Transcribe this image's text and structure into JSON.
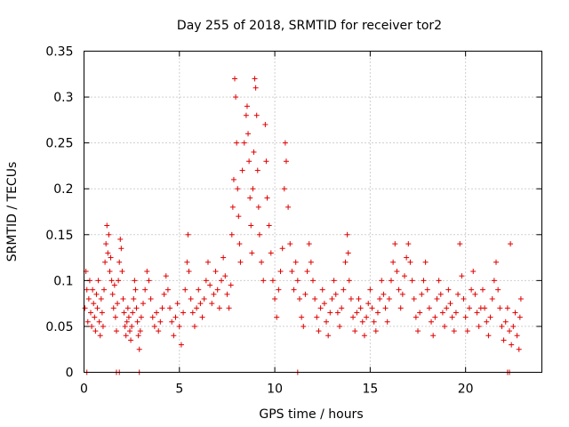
{
  "chart_data": {
    "type": "scatter",
    "title": "Day 255 of 2018, SRMTID for receiver tor2",
    "xlabel": "GPS time / hours",
    "ylabel": "SRMTID / TECUs",
    "xlim": [
      0,
      24
    ],
    "ylim": [
      0,
      0.35
    ],
    "x_ticks": [
      {
        "value": 0,
        "label": "0"
      },
      {
        "value": 5,
        "label": "5"
      },
      {
        "value": 10,
        "label": "10"
      },
      {
        "value": 15,
        "label": "15"
      },
      {
        "value": 20,
        "label": "20"
      }
    ],
    "y_ticks": [
      {
        "value": 0,
        "label": "0"
      },
      {
        "value": 0.05,
        "label": "0.05"
      },
      {
        "value": 0.1,
        "label": "0.1"
      },
      {
        "value": 0.15,
        "label": "0.15"
      },
      {
        "value": 0.2,
        "label": "0.2"
      },
      {
        "value": 0.25,
        "label": "0.25"
      },
      {
        "value": 0.3,
        "label": "0.3"
      },
      {
        "value": 0.35,
        "label": "0.35"
      }
    ],
    "grid": true,
    "marker": "+",
    "series": [
      {
        "name": "SRMTID",
        "color": "#e00000",
        "points": [
          [
            0.05,
            0.07
          ],
          [
            0.1,
            0.11
          ],
          [
            0.15,
            0.09
          ],
          [
            0.2,
            0.055
          ],
          [
            0.25,
            0.08
          ],
          [
            0.3,
            0.1
          ],
          [
            0.35,
            0.065
          ],
          [
            0.4,
            0.05
          ],
          [
            0.45,
            0.09
          ],
          [
            0.5,
            0.075
          ],
          [
            0.55,
            0.06
          ],
          [
            0.6,
            0.045
          ],
          [
            0.65,
            0.085
          ],
          [
            0.7,
            0.07
          ],
          [
            0.75,
            0.1
          ],
          [
            0.8,
            0.055
          ],
          [
            0.85,
            0.04
          ],
          [
            0.9,
            0.08
          ],
          [
            0.95,
            0.065
          ],
          [
            1.0,
            0.05
          ],
          [
            1.05,
            0.09
          ],
          [
            1.1,
            0.12
          ],
          [
            1.15,
            0.14
          ],
          [
            1.2,
            0.16
          ],
          [
            1.25,
            0.13
          ],
          [
            1.3,
            0.15
          ],
          [
            1.35,
            0.11
          ],
          [
            1.4,
            0.125
          ],
          [
            1.45,
            0.1
          ],
          [
            1.5,
            0.085
          ],
          [
            1.55,
            0.07
          ],
          [
            1.6,
            0.095
          ],
          [
            1.65,
            0.06
          ],
          [
            1.7,
            0.045
          ],
          [
            1.75,
            0.075
          ],
          [
            1.8,
            0.1
          ],
          [
            1.85,
            0.12
          ],
          [
            1.9,
            0.145
          ],
          [
            1.95,
            0.135
          ],
          [
            2.0,
            0.11
          ],
          [
            2.05,
            0.08
          ],
          [
            2.1,
            0.065
          ],
          [
            2.15,
            0.05
          ],
          [
            2.2,
            0.04
          ],
          [
            2.25,
            0.055
          ],
          [
            2.3,
            0.07
          ],
          [
            2.35,
            0.06
          ],
          [
            2.4,
            0.045
          ],
          [
            2.45,
            0.035
          ],
          [
            2.5,
            0.05
          ],
          [
            2.55,
            0.065
          ],
          [
            2.6,
            0.08
          ],
          [
            2.65,
            0.1
          ],
          [
            2.7,
            0.09
          ],
          [
            2.75,
            0.07
          ],
          [
            2.8,
            0.055
          ],
          [
            2.85,
            0.04
          ],
          [
            2.9,
            0.025
          ],
          [
            2.95,
            0.045
          ],
          [
            3.0,
            0.06
          ],
          [
            3.1,
            0.075
          ],
          [
            3.2,
            0.09
          ],
          [
            3.3,
            0.11
          ],
          [
            3.4,
            0.1
          ],
          [
            3.5,
            0.08
          ],
          [
            3.6,
            0.06
          ],
          [
            3.7,
            0.05
          ],
          [
            3.8,
            0.065
          ],
          [
            3.9,
            0.045
          ],
          [
            4.0,
            0.055
          ],
          [
            4.1,
            0.07
          ],
          [
            4.2,
            0.085
          ],
          [
            4.3,
            0.105
          ],
          [
            4.4,
            0.09
          ],
          [
            4.5,
            0.07
          ],
          [
            4.6,
            0.055
          ],
          [
            4.7,
            0.04
          ],
          [
            4.8,
            0.06
          ],
          [
            4.9,
            0.075
          ],
          [
            5.0,
            0.05
          ],
          [
            5.1,
            0.03
          ],
          [
            5.2,
            0.065
          ],
          [
            5.3,
            0.09
          ],
          [
            5.4,
            0.12
          ],
          [
            5.45,
            0.15
          ],
          [
            5.5,
            0.11
          ],
          [
            5.6,
            0.08
          ],
          [
            5.7,
            0.065
          ],
          [
            5.8,
            0.05
          ],
          [
            5.9,
            0.07
          ],
          [
            6.0,
            0.09
          ],
          [
            6.1,
            0.075
          ],
          [
            6.2,
            0.06
          ],
          [
            6.3,
            0.08
          ],
          [
            6.4,
            0.1
          ],
          [
            6.5,
            0.12
          ],
          [
            6.6,
            0.095
          ],
          [
            6.7,
            0.075
          ],
          [
            6.8,
            0.085
          ],
          [
            6.9,
            0.11
          ],
          [
            7.0,
            0.09
          ],
          [
            7.1,
            0.07
          ],
          [
            7.2,
            0.1
          ],
          [
            7.3,
            0.125
          ],
          [
            7.4,
            0.105
          ],
          [
            7.5,
            0.085
          ],
          [
            7.6,
            0.07
          ],
          [
            7.7,
            0.095
          ],
          [
            7.75,
            0.15
          ],
          [
            7.8,
            0.18
          ],
          [
            7.85,
            0.21
          ],
          [
            7.9,
            0.32
          ],
          [
            7.95,
            0.3
          ],
          [
            8.0,
            0.25
          ],
          [
            8.05,
            0.2
          ],
          [
            8.1,
            0.17
          ],
          [
            8.15,
            0.14
          ],
          [
            8.2,
            0.12
          ],
          [
            8.3,
            0.22
          ],
          [
            8.4,
            0.25
          ],
          [
            8.5,
            0.28
          ],
          [
            8.55,
            0.29
          ],
          [
            8.6,
            0.26
          ],
          [
            8.65,
            0.23
          ],
          [
            8.7,
            0.19
          ],
          [
            8.75,
            0.16
          ],
          [
            8.8,
            0.13
          ],
          [
            8.85,
            0.2
          ],
          [
            8.9,
            0.24
          ],
          [
            8.95,
            0.32
          ],
          [
            9.0,
            0.31
          ],
          [
            9.05,
            0.28
          ],
          [
            9.1,
            0.22
          ],
          [
            9.15,
            0.18
          ],
          [
            9.2,
            0.15
          ],
          [
            9.3,
            0.12
          ],
          [
            9.4,
            0.1
          ],
          [
            9.5,
            0.27
          ],
          [
            9.55,
            0.23
          ],
          [
            9.6,
            0.19
          ],
          [
            9.7,
            0.16
          ],
          [
            9.8,
            0.13
          ],
          [
            9.9,
            0.1
          ],
          [
            10.0,
            0.08
          ],
          [
            10.1,
            0.06
          ],
          [
            10.2,
            0.09
          ],
          [
            10.3,
            0.11
          ],
          [
            10.4,
            0.135
          ],
          [
            10.5,
            0.2
          ],
          [
            10.55,
            0.25
          ],
          [
            10.6,
            0.23
          ],
          [
            10.7,
            0.18
          ],
          [
            10.8,
            0.14
          ],
          [
            10.9,
            0.11
          ],
          [
            11.0,
            0.09
          ],
          [
            11.1,
            0.12
          ],
          [
            11.2,
            0.1
          ],
          [
            11.3,
            0.08
          ],
          [
            11.4,
            0.06
          ],
          [
            11.5,
            0.05
          ],
          [
            11.6,
            0.085
          ],
          [
            11.7,
            0.11
          ],
          [
            11.8,
            0.14
          ],
          [
            11.9,
            0.12
          ],
          [
            12.0,
            0.1
          ],
          [
            12.1,
            0.08
          ],
          [
            12.2,
            0.06
          ],
          [
            12.3,
            0.045
          ],
          [
            12.4,
            0.07
          ],
          [
            12.5,
            0.09
          ],
          [
            12.6,
            0.075
          ],
          [
            12.7,
            0.055
          ],
          [
            12.8,
            0.04
          ],
          [
            12.9,
            0.065
          ],
          [
            13.0,
            0.08
          ],
          [
            13.1,
            0.1
          ],
          [
            13.2,
            0.085
          ],
          [
            13.3,
            0.065
          ],
          [
            13.4,
            0.05
          ],
          [
            13.5,
            0.07
          ],
          [
            13.6,
            0.09
          ],
          [
            13.7,
            0.12
          ],
          [
            13.8,
            0.15
          ],
          [
            13.85,
            0.13
          ],
          [
            13.9,
            0.1
          ],
          [
            14.0,
            0.08
          ],
          [
            14.1,
            0.06
          ],
          [
            14.2,
            0.045
          ],
          [
            14.3,
            0.065
          ],
          [
            14.4,
            0.08
          ],
          [
            14.5,
            0.07
          ],
          [
            14.6,
            0.055
          ],
          [
            14.7,
            0.04
          ],
          [
            14.8,
            0.06
          ],
          [
            14.9,
            0.075
          ],
          [
            15.0,
            0.09
          ],
          [
            15.1,
            0.07
          ],
          [
            15.2,
            0.055
          ],
          [
            15.3,
            0.045
          ],
          [
            15.4,
            0.065
          ],
          [
            15.5,
            0.08
          ],
          [
            15.6,
            0.1
          ],
          [
            15.7,
            0.085
          ],
          [
            15.8,
            0.07
          ],
          [
            15.9,
            0.055
          ],
          [
            16.0,
            0.08
          ],
          [
            16.1,
            0.1
          ],
          [
            16.2,
            0.12
          ],
          [
            16.3,
            0.14
          ],
          [
            16.4,
            0.11
          ],
          [
            16.5,
            0.09
          ],
          [
            16.6,
            0.07
          ],
          [
            16.7,
            0.085
          ],
          [
            16.8,
            0.105
          ],
          [
            16.9,
            0.125
          ],
          [
            17.0,
            0.14
          ],
          [
            17.1,
            0.12
          ],
          [
            17.2,
            0.1
          ],
          [
            17.3,
            0.08
          ],
          [
            17.4,
            0.06
          ],
          [
            17.5,
            0.045
          ],
          [
            17.6,
            0.065
          ],
          [
            17.7,
            0.085
          ],
          [
            17.8,
            0.1
          ],
          [
            17.9,
            0.12
          ],
          [
            18.0,
            0.09
          ],
          [
            18.1,
            0.07
          ],
          [
            18.2,
            0.055
          ],
          [
            18.3,
            0.04
          ],
          [
            18.4,
            0.06
          ],
          [
            18.5,
            0.08
          ],
          [
            18.6,
            0.1
          ],
          [
            18.7,
            0.085
          ],
          [
            18.8,
            0.065
          ],
          [
            18.9,
            0.05
          ],
          [
            19.0,
            0.07
          ],
          [
            19.1,
            0.09
          ],
          [
            19.2,
            0.075
          ],
          [
            19.3,
            0.06
          ],
          [
            19.4,
            0.045
          ],
          [
            19.5,
            0.065
          ],
          [
            19.6,
            0.085
          ],
          [
            19.7,
            0.14
          ],
          [
            19.8,
            0.105
          ],
          [
            19.9,
            0.08
          ],
          [
            20.0,
            0.06
          ],
          [
            20.1,
            0.045
          ],
          [
            20.2,
            0.07
          ],
          [
            20.3,
            0.09
          ],
          [
            20.4,
            0.11
          ],
          [
            20.5,
            0.085
          ],
          [
            20.6,
            0.065
          ],
          [
            20.7,
            0.05
          ],
          [
            20.8,
            0.07
          ],
          [
            20.9,
            0.09
          ],
          [
            21.0,
            0.07
          ],
          [
            21.1,
            0.055
          ],
          [
            21.2,
            0.04
          ],
          [
            21.3,
            0.06
          ],
          [
            21.4,
            0.08
          ],
          [
            21.5,
            0.1
          ],
          [
            21.6,
            0.12
          ],
          [
            21.7,
            0.09
          ],
          [
            21.8,
            0.07
          ],
          [
            21.9,
            0.05
          ],
          [
            22.0,
            0.035
          ],
          [
            22.1,
            0.055
          ],
          [
            22.2,
            0.07
          ],
          [
            22.3,
            0.045
          ],
          [
            22.4,
            0.03
          ],
          [
            22.5,
            0.05
          ],
          [
            22.6,
            0.065
          ],
          [
            22.7,
            0.04
          ],
          [
            22.8,
            0.025
          ],
          [
            22.85,
            0.06
          ],
          [
            22.9,
            0.08
          ],
          [
            22.35,
            0.14
          ],
          [
            0.15,
            0.0
          ],
          [
            1.7,
            0.0
          ],
          [
            1.85,
            0.0
          ],
          [
            2.9,
            0.0
          ],
          [
            11.2,
            0.0
          ],
          [
            22.2,
            0.0
          ],
          [
            22.3,
            0.0
          ]
        ]
      }
    ]
  }
}
